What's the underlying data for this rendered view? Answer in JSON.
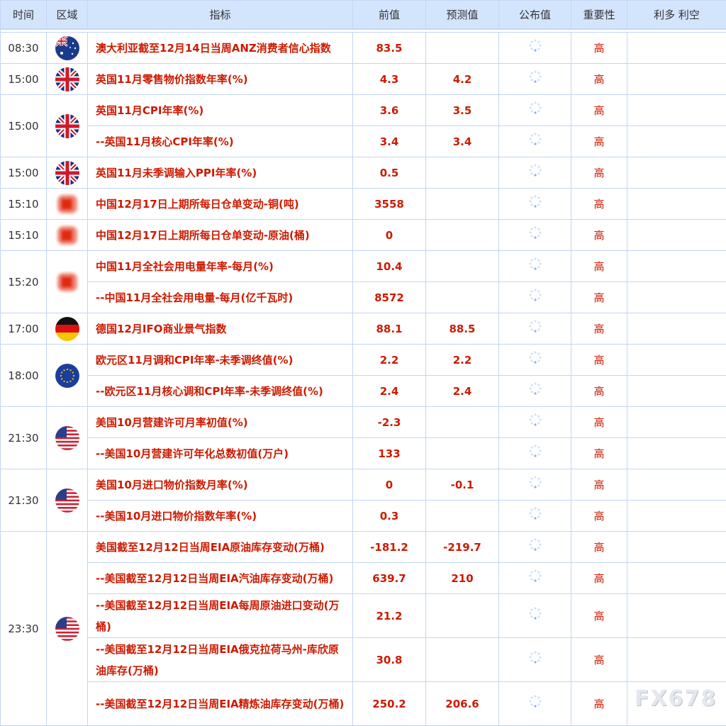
{
  "header": {
    "time": "时间",
    "region": "区域",
    "indicator": "指标",
    "previous": "前值",
    "forecast": "预测值",
    "actual": "公布值",
    "importance": "重要性",
    "impact": "利多 利空"
  },
  "colors": {
    "text_red": "#cc1a00",
    "header_bg": "#d3e4fd",
    "border": "#c3d6f2"
  },
  "groups": [
    {
      "time": "08:30",
      "flag": "australia-flag-icon",
      "rows": [
        {
          "indicator": "澳大利亚截至12月14日当周ANZ消费者信心指数",
          "previous": "83.5",
          "forecast": "",
          "importance": "高"
        }
      ]
    },
    {
      "time": "15:00",
      "flag": "uk-flag-icon",
      "rows": [
        {
          "indicator": "英国11月零售物价指数年率(%)",
          "previous": "4.3",
          "forecast": "4.2",
          "importance": "高"
        }
      ]
    },
    {
      "time": "15:00",
      "flag": "uk-flag-icon",
      "rows": [
        {
          "indicator": "英国11月CPI年率(%)",
          "previous": "3.6",
          "forecast": "3.5",
          "importance": "高"
        },
        {
          "indicator": "--英国11月核心CPI年率(%)",
          "previous": "3.4",
          "forecast": "3.4",
          "importance": "高"
        }
      ]
    },
    {
      "time": "15:00",
      "flag": "uk-flag-icon",
      "rows": [
        {
          "indicator": "英国11月未季调输入PPI年率(%)",
          "previous": "0.5",
          "forecast": "",
          "importance": "高"
        }
      ]
    },
    {
      "time": "15:10",
      "flag": "china-flag-icon",
      "rows": [
        {
          "indicator": "中国12月17日上期所每日仓单变动-铜(吨)",
          "previous": "3558",
          "forecast": "",
          "importance": "高"
        }
      ]
    },
    {
      "time": "15:10",
      "flag": "china-flag-icon",
      "rows": [
        {
          "indicator": "中国12月17日上期所每日仓单变动-原油(桶)",
          "previous": "0",
          "forecast": "",
          "importance": "高"
        }
      ]
    },
    {
      "time": "15:20",
      "flag": "china-flag-icon",
      "rows": [
        {
          "indicator": "中国11月全社会用电量年率-每月(%)",
          "previous": "10.4",
          "forecast": "",
          "importance": "高"
        },
        {
          "indicator": "--中国11月全社会用电量-每月(亿千瓦时)",
          "previous": "8572",
          "forecast": "",
          "importance": "高"
        }
      ]
    },
    {
      "time": "17:00",
      "flag": "germany-flag-icon",
      "rows": [
        {
          "indicator": "德国12月IFO商业景气指数",
          "previous": "88.1",
          "forecast": "88.5",
          "importance": "高"
        }
      ]
    },
    {
      "time": "18:00",
      "flag": "eu-flag-icon",
      "rows": [
        {
          "indicator": "欧元区11月调和CPI年率-未季调终值(%)",
          "previous": "2.2",
          "forecast": "2.2",
          "importance": "高"
        },
        {
          "indicator": "--欧元区11月核心调和CPI年率-未季调终值(%)",
          "previous": "2.4",
          "forecast": "2.4",
          "importance": "高"
        }
      ]
    },
    {
      "time": "21:30",
      "flag": "us-flag-icon",
      "rows": [
        {
          "indicator": "美国10月营建许可月率初值(%)",
          "previous": "-2.3",
          "forecast": "",
          "importance": "高"
        },
        {
          "indicator": "--美国10月营建许可年化总数初值(万户)",
          "previous": "133",
          "forecast": "",
          "importance": "高"
        }
      ]
    },
    {
      "time": "21:30",
      "flag": "us-flag-icon",
      "rows": [
        {
          "indicator": "美国10月进口物价指数月率(%)",
          "previous": "0",
          "forecast": "-0.1",
          "importance": "高"
        },
        {
          "indicator": "--美国10月进口物价指数年率(%)",
          "previous": "0.3",
          "forecast": "",
          "importance": "高"
        }
      ]
    },
    {
      "time": "23:30",
      "flag": "us-flag-icon",
      "rows": [
        {
          "indicator": "美国截至12月12日当周EIA原油库存变动(万桶)",
          "previous": "-181.2",
          "forecast": "-219.7",
          "importance": "高"
        },
        {
          "indicator": "--美国截至12月12日当周EIA汽油库存变动(万桶)",
          "previous": "639.7",
          "forecast": "210",
          "importance": "高"
        },
        {
          "indicator": "--美国截至12月12日当周EIA每周原油进口变动(万桶)",
          "previous": "21.2",
          "forecast": "",
          "importance": "高",
          "tall": true
        },
        {
          "indicator": "--美国截至12月12日当周EIA俄克拉荷马州-库欣原油库存(万桶)",
          "previous": "30.8",
          "forecast": "",
          "importance": "高",
          "tall": true
        },
        {
          "indicator": "--美国截至12月12日当周EIA精炼油库存变动(万桶)",
          "previous": "250.2",
          "forecast": "206.6",
          "importance": "高",
          "tall": true
        }
      ]
    }
  ],
  "watermark": "FX678"
}
